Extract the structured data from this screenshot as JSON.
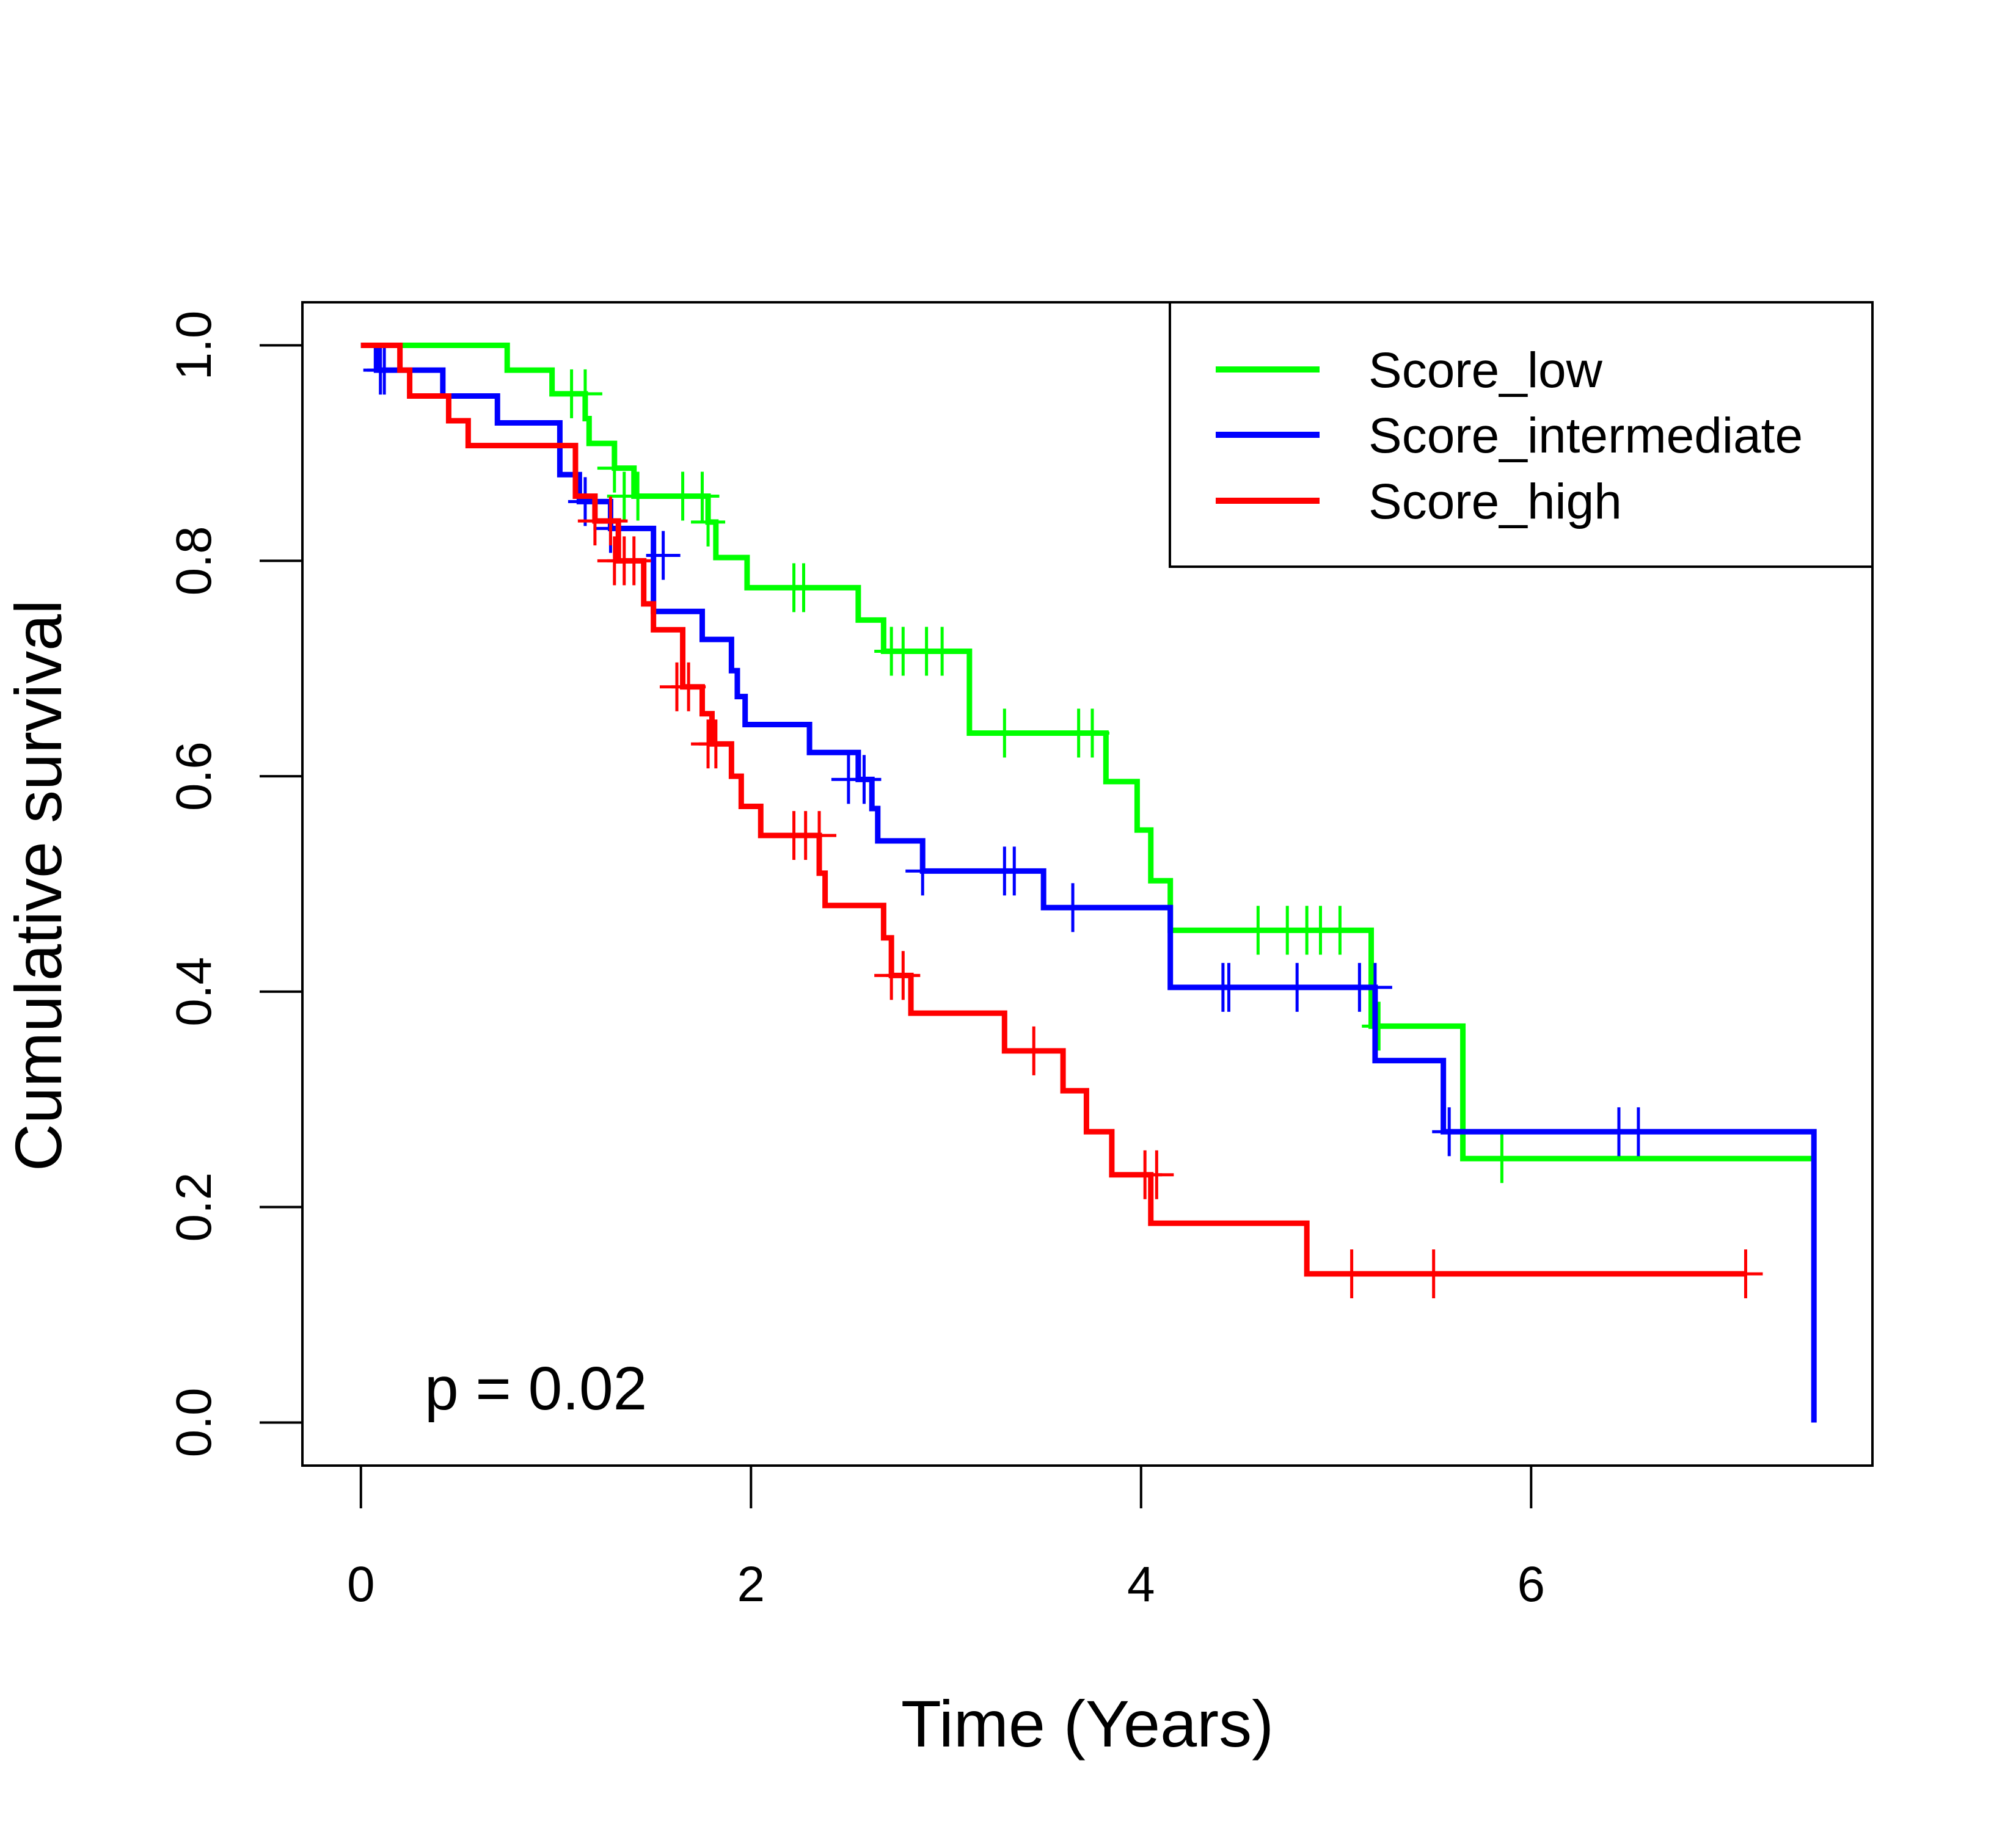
{
  "chart_data": {
    "type": "line",
    "subtype": "kaplan-meier step plot",
    "xlabel": "Time (Years)",
    "ylabel": "Cumulative survival",
    "xlim": [
      -0.3,
      7.75
    ],
    "ylim": [
      -0.04,
      1.04
    ],
    "xticks": [
      0,
      2,
      4,
      6
    ],
    "yticks": [
      0.0,
      0.2,
      0.4,
      0.6,
      0.8,
      1.0
    ],
    "xtick_labels": [
      "0",
      "2",
      "4",
      "6"
    ],
    "ytick_labels": [
      "0.0",
      "0.2",
      "0.4",
      "0.6",
      "0.8",
      "1.0"
    ],
    "grid": false,
    "legend_position": "top-right",
    "annotation": "p = 0.02",
    "series": [
      {
        "name": "Score_low",
        "color": "#00ff00",
        "steps": [
          [
            0,
            1.0
          ],
          [
            0.75,
            0.977
          ],
          [
            0.98,
            0.955
          ],
          [
            1.15,
            0.932
          ],
          [
            1.17,
            0.909
          ],
          [
            1.3,
            0.886
          ],
          [
            1.4,
            0.86
          ],
          [
            1.78,
            0.836
          ],
          [
            1.82,
            0.803
          ],
          [
            1.98,
            0.775
          ],
          [
            2.55,
            0.745
          ],
          [
            2.68,
            0.716
          ],
          [
            3.12,
            0.64
          ],
          [
            3.82,
            0.595
          ],
          [
            3.98,
            0.55
          ],
          [
            4.05,
            0.503
          ],
          [
            4.15,
            0.457
          ],
          [
            5.18,
            0.368
          ],
          [
            5.65,
            0.245
          ],
          [
            7.45,
            0.245
          ]
        ],
        "censored": [
          [
            1.08,
            0.955
          ],
          [
            1.15,
            0.955
          ],
          [
            1.3,
            0.886
          ],
          [
            1.35,
            0.86
          ],
          [
            1.42,
            0.86
          ],
          [
            1.65,
            0.86
          ],
          [
            1.75,
            0.86
          ],
          [
            1.78,
            0.836
          ],
          [
            2.22,
            0.775
          ],
          [
            2.27,
            0.775
          ],
          [
            2.72,
            0.716
          ],
          [
            2.78,
            0.716
          ],
          [
            2.9,
            0.716
          ],
          [
            2.98,
            0.716
          ],
          [
            3.3,
            0.64
          ],
          [
            3.68,
            0.64
          ],
          [
            3.75,
            0.64
          ],
          [
            4.6,
            0.457
          ],
          [
            4.75,
            0.457
          ],
          [
            4.85,
            0.457
          ],
          [
            4.92,
            0.457
          ],
          [
            5.02,
            0.457
          ],
          [
            5.22,
            0.368
          ],
          [
            5.85,
            0.245
          ]
        ]
      },
      {
        "name": "Score_intermediate",
        "color": "#0000ff",
        "steps": [
          [
            0,
            1.0
          ],
          [
            0.08,
            0.977
          ],
          [
            0.42,
            0.953
          ],
          [
            0.7,
            0.928
          ],
          [
            1.02,
            0.88
          ],
          [
            1.12,
            0.855
          ],
          [
            1.28,
            0.83
          ],
          [
            1.5,
            0.753
          ],
          [
            1.75,
            0.727
          ],
          [
            1.9,
            0.698
          ],
          [
            1.93,
            0.674
          ],
          [
            1.97,
            0.648
          ],
          [
            2.3,
            0.622
          ],
          [
            2.55,
            0.597
          ],
          [
            2.62,
            0.57
          ],
          [
            2.65,
            0.54
          ],
          [
            2.88,
            0.512
          ],
          [
            3.5,
            0.478
          ],
          [
            4.15,
            0.404
          ],
          [
            5.2,
            0.336
          ],
          [
            5.55,
            0.27
          ],
          [
            7.45,
            0.27
          ],
          [
            7.45,
            0.0
          ]
        ],
        "censored": [
          [
            0.1,
            0.977
          ],
          [
            0.12,
            0.977
          ],
          [
            1.15,
            0.855
          ],
          [
            1.28,
            0.83
          ],
          [
            1.55,
            0.805
          ],
          [
            2.5,
            0.597
          ],
          [
            2.58,
            0.597
          ],
          [
            2.88,
            0.512
          ],
          [
            3.3,
            0.512
          ],
          [
            3.35,
            0.512
          ],
          [
            3.65,
            0.478
          ],
          [
            4.42,
            0.404
          ],
          [
            4.45,
            0.404
          ],
          [
            4.8,
            0.404
          ],
          [
            5.12,
            0.404
          ],
          [
            5.2,
            0.404
          ],
          [
            5.58,
            0.27
          ],
          [
            6.45,
            0.27
          ],
          [
            6.55,
            0.27
          ]
        ]
      },
      {
        "name": "Score_high",
        "color": "#ff0000",
        "steps": [
          [
            0,
            1.0
          ],
          [
            0.2,
            0.977
          ],
          [
            0.25,
            0.953
          ],
          [
            0.45,
            0.93
          ],
          [
            0.55,
            0.907
          ],
          [
            1.1,
            0.86
          ],
          [
            1.2,
            0.837
          ],
          [
            1.32,
            0.8
          ],
          [
            1.45,
            0.76
          ],
          [
            1.5,
            0.736
          ],
          [
            1.65,
            0.683
          ],
          [
            1.75,
            0.658
          ],
          [
            1.8,
            0.63
          ],
          [
            1.9,
            0.6
          ],
          [
            1.95,
            0.572
          ],
          [
            2.05,
            0.545
          ],
          [
            2.35,
            0.51
          ],
          [
            2.38,
            0.48
          ],
          [
            2.68,
            0.45
          ],
          [
            2.72,
            0.415
          ],
          [
            2.82,
            0.38
          ],
          [
            3.3,
            0.345
          ],
          [
            3.6,
            0.308
          ],
          [
            3.72,
            0.27
          ],
          [
            3.85,
            0.23
          ],
          [
            4.05,
            0.185
          ],
          [
            4.85,
            0.138
          ],
          [
            7.1,
            0.138
          ]
        ],
        "censored": [
          [
            1.2,
            0.837
          ],
          [
            1.28,
            0.837
          ],
          [
            1.3,
            0.8
          ],
          [
            1.35,
            0.8
          ],
          [
            1.4,
            0.8
          ],
          [
            1.62,
            0.683
          ],
          [
            1.68,
            0.683
          ],
          [
            1.78,
            0.63
          ],
          [
            1.82,
            0.63
          ],
          [
            2.22,
            0.545
          ],
          [
            2.28,
            0.545
          ],
          [
            2.35,
            0.545
          ],
          [
            2.72,
            0.415
          ],
          [
            2.78,
            0.415
          ],
          [
            3.45,
            0.345
          ],
          [
            4.02,
            0.23
          ],
          [
            4.08,
            0.23
          ],
          [
            5.08,
            0.138
          ],
          [
            5.5,
            0.138
          ],
          [
            7.1,
            0.138
          ]
        ]
      }
    ]
  }
}
